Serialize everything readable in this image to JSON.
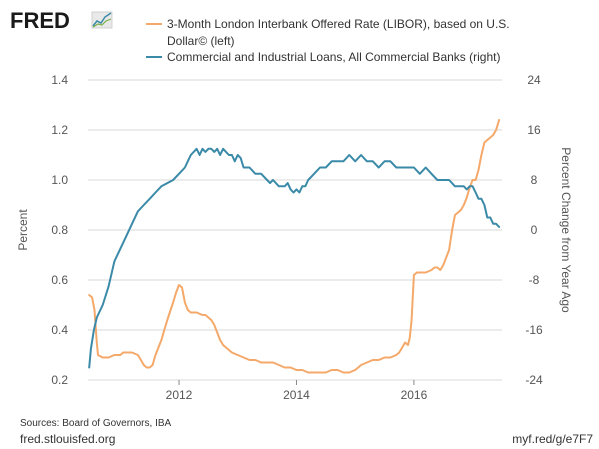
{
  "logo": {
    "text": "FRED"
  },
  "legend": [
    {
      "lines": [
        "3-Month London Interbank Offered Rate (LIBOR), based on U.S.",
        "Dollar© (left)"
      ],
      "color": "#f4a96a"
    },
    {
      "lines": [
        "Commercial and Industrial Loans, All Commercial Banks (right)"
      ],
      "color": "#3a8aa8"
    }
  ],
  "footer": {
    "source": "Sources: Board of Governors, IBA",
    "site": "fred.stlouisfed.org",
    "shortlink": "myf.red/g/e7F7"
  },
  "chart_data": {
    "type": "line",
    "xlabel": "",
    "ylabel": "Percent",
    "ylabel_right": "Percent Change from Year Ago",
    "xlim": [
      2010.45,
      2017.5
    ],
    "ylim": [
      0.2,
      1.4
    ],
    "ylim_right": [
      -24,
      24
    ],
    "x_ticks": [
      2012,
      2014,
      2016
    ],
    "y_ticks": [
      0.2,
      0.4,
      0.6,
      0.8,
      1.0,
      1.2,
      1.4
    ],
    "y_tick_labels": [
      "0.2",
      "0.4",
      "0.6",
      "0.8",
      "1.0",
      "1.2",
      "1.4"
    ],
    "y_ticks_right": [
      -24,
      -16,
      -8,
      0,
      8,
      16,
      24
    ],
    "grid": "horizontal",
    "legend_position": "top",
    "series": [
      {
        "name": "3-Month London Interbank Offered Rate (LIBOR), based on U.S. Dollar© (left)",
        "axis": "left",
        "color": "#f4a96a",
        "x": [
          2010.47,
          2010.52,
          2010.56,
          2010.6,
          2010.62,
          2010.7,
          2010.8,
          2010.9,
          2011.0,
          2011.05,
          2011.1,
          2011.2,
          2011.3,
          2011.35,
          2011.4,
          2011.45,
          2011.5,
          2011.55,
          2011.6,
          2011.7,
          2011.75,
          2011.8,
          2011.9,
          2011.95,
          2012.0,
          2012.05,
          2012.1,
          2012.15,
          2012.2,
          2012.3,
          2012.4,
          2012.45,
          2012.5,
          2012.55,
          2012.6,
          2012.65,
          2012.7,
          2012.75,
          2012.8,
          2012.85,
          2012.9,
          2013.0,
          2013.1,
          2013.2,
          2013.3,
          2013.4,
          2013.5,
          2013.6,
          2013.7,
          2013.8,
          2013.9,
          2014.0,
          2014.1,
          2014.2,
          2014.3,
          2014.4,
          2014.5,
          2014.6,
          2014.7,
          2014.8,
          2014.9,
          2015.0,
          2015.1,
          2015.2,
          2015.3,
          2015.4,
          2015.5,
          2015.6,
          2015.7,
          2015.75,
          2015.8,
          2015.85,
          2015.9,
          2015.93,
          2015.96,
          2016.0,
          2016.05,
          2016.1,
          2016.2,
          2016.3,
          2016.35,
          2016.4,
          2016.45,
          2016.5,
          2016.55,
          2016.6,
          2016.65,
          2016.7,
          2016.75,
          2016.8,
          2016.85,
          2016.9,
          2016.95,
          2017.0,
          2017.05,
          2017.1,
          2017.15,
          2017.2,
          2017.25,
          2017.3,
          2017.35,
          2017.4,
          2017.45
        ],
        "values": [
          0.54,
          0.53,
          0.48,
          0.35,
          0.3,
          0.29,
          0.29,
          0.3,
          0.3,
          0.31,
          0.31,
          0.31,
          0.3,
          0.28,
          0.26,
          0.25,
          0.25,
          0.26,
          0.3,
          0.36,
          0.4,
          0.44,
          0.51,
          0.55,
          0.58,
          0.57,
          0.51,
          0.48,
          0.47,
          0.47,
          0.46,
          0.46,
          0.45,
          0.44,
          0.42,
          0.39,
          0.36,
          0.34,
          0.33,
          0.32,
          0.31,
          0.3,
          0.29,
          0.28,
          0.28,
          0.27,
          0.27,
          0.27,
          0.26,
          0.25,
          0.25,
          0.24,
          0.24,
          0.23,
          0.23,
          0.23,
          0.23,
          0.24,
          0.24,
          0.23,
          0.23,
          0.24,
          0.26,
          0.27,
          0.28,
          0.28,
          0.29,
          0.29,
          0.3,
          0.31,
          0.33,
          0.35,
          0.34,
          0.37,
          0.44,
          0.62,
          0.63,
          0.63,
          0.63,
          0.64,
          0.65,
          0.65,
          0.64,
          0.66,
          0.69,
          0.72,
          0.8,
          0.86,
          0.87,
          0.88,
          0.9,
          0.93,
          0.97,
          1.0,
          1.0,
          1.04,
          1.1,
          1.15,
          1.16,
          1.17,
          1.18,
          1.2,
          1.24
        ]
      },
      {
        "name": "Commercial and Industrial Loans, All Commercial Banks (right)",
        "axis": "right",
        "color": "#3a8aa8",
        "x": [
          2010.47,
          2010.5,
          2010.55,
          2010.6,
          2010.7,
          2010.8,
          2010.9,
          2011.0,
          2011.1,
          2011.2,
          2011.3,
          2011.4,
          2011.5,
          2011.6,
          2011.7,
          2011.8,
          2011.9,
          2012.0,
          2012.1,
          2012.15,
          2012.2,
          2012.3,
          2012.35,
          2012.4,
          2012.45,
          2012.5,
          2012.55,
          2012.6,
          2012.65,
          2012.7,
          2012.75,
          2012.8,
          2012.85,
          2012.9,
          2012.95,
          2013.0,
          2013.05,
          2013.1,
          2013.2,
          2013.3,
          2013.4,
          2013.5,
          2013.55,
          2013.6,
          2013.7,
          2013.8,
          2013.85,
          2013.9,
          2013.95,
          2014.0,
          2014.05,
          2014.1,
          2014.15,
          2014.2,
          2014.3,
          2014.4,
          2014.5,
          2014.6,
          2014.7,
          2014.8,
          2014.9,
          2015.0,
          2015.1,
          2015.2,
          2015.3,
          2015.4,
          2015.5,
          2015.6,
          2015.7,
          2015.8,
          2015.9,
          2016.0,
          2016.1,
          2016.2,
          2016.3,
          2016.4,
          2016.5,
          2016.6,
          2016.7,
          2016.8,
          2016.85,
          2016.9,
          2016.95,
          2017.0,
          2017.05,
          2017.1,
          2017.15,
          2017.2,
          2017.25,
          2017.3,
          2017.35,
          2017.4,
          2017.45
        ],
        "values": [
          -22,
          -19,
          -16,
          -14,
          -12,
          -9,
          -5,
          -3,
          -1,
          1,
          3,
          4,
          5,
          6,
          7,
          7.5,
          8,
          9,
          10,
          11,
          12,
          13,
          12,
          13,
          12.5,
          13,
          13,
          12.5,
          13,
          12,
          13,
          12.5,
          12,
          12,
          11,
          12,
          11.5,
          10,
          10,
          9,
          9,
          8,
          7.5,
          8,
          7,
          7,
          7.5,
          6.5,
          6,
          6.5,
          6,
          7,
          7,
          8,
          9,
          10,
          10,
          11,
          11,
          11,
          12,
          11,
          12,
          11,
          11,
          10,
          11,
          11,
          10,
          10,
          10,
          10,
          9,
          10,
          9,
          8,
          8,
          8,
          7,
          7,
          7,
          6.5,
          7,
          7,
          6,
          5,
          5,
          4,
          2,
          2,
          1,
          1,
          0.5
        ]
      }
    ]
  }
}
